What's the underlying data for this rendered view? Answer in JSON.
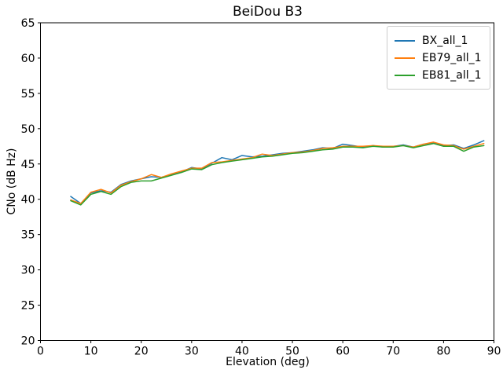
{
  "chart_data": {
    "type": "line",
    "title": "BeiDou B3",
    "xlabel": "Elevation (deg)",
    "ylabel": "CNo (dB Hz)",
    "xlim": [
      0,
      90
    ],
    "ylim": [
      20,
      65
    ],
    "xticks": [
      0,
      10,
      20,
      30,
      40,
      50,
      60,
      70,
      80,
      90
    ],
    "yticks": [
      20,
      25,
      30,
      35,
      40,
      45,
      50,
      55,
      60,
      65
    ],
    "grid": false,
    "legend_position": "upper right",
    "x": [
      6,
      8,
      10,
      12,
      14,
      16,
      18,
      20,
      22,
      24,
      26,
      28,
      30,
      32,
      34,
      36,
      38,
      40,
      42,
      44,
      46,
      48,
      50,
      52,
      54,
      56,
      58,
      60,
      62,
      64,
      66,
      68,
      70,
      72,
      74,
      76,
      78,
      80,
      82,
      84,
      86,
      88
    ],
    "series": [
      {
        "name": "BX_all_1",
        "color": "#1f77b4",
        "values": [
          40.4,
          39.4,
          40.9,
          41.2,
          41.0,
          42.1,
          42.6,
          42.9,
          43.2,
          43.1,
          43.5,
          43.9,
          44.5,
          44.3,
          45.1,
          45.9,
          45.6,
          46.2,
          46.0,
          46.1,
          46.3,
          46.5,
          46.6,
          46.8,
          47.0,
          47.3,
          47.2,
          47.8,
          47.6,
          47.4,
          47.6,
          47.4,
          47.5,
          47.7,
          47.4,
          47.8,
          48.0,
          47.6,
          47.7,
          47.2,
          47.7,
          48.3
        ]
      },
      {
        "name": "EB79_all_1",
        "color": "#ff7f0e",
        "values": [
          39.9,
          39.4,
          41.0,
          41.4,
          40.9,
          42.0,
          42.5,
          42.9,
          43.5,
          43.1,
          43.6,
          44.0,
          44.4,
          44.4,
          45.2,
          45.3,
          45.5,
          45.7,
          45.9,
          46.4,
          46.2,
          46.4,
          46.6,
          46.7,
          46.9,
          47.2,
          47.3,
          47.5,
          47.5,
          47.5,
          47.6,
          47.5,
          47.5,
          47.6,
          47.4,
          47.8,
          48.1,
          47.7,
          47.6,
          47.1,
          47.5,
          47.9
        ]
      },
      {
        "name": "EB81_all_1",
        "color": "#2ca02c",
        "values": [
          39.8,
          39.2,
          40.7,
          41.1,
          40.7,
          41.8,
          42.4,
          42.6,
          42.6,
          43.0,
          43.4,
          43.8,
          44.3,
          44.2,
          44.9,
          45.2,
          45.4,
          45.6,
          45.8,
          46.0,
          46.1,
          46.3,
          46.5,
          46.6,
          46.8,
          47.0,
          47.1,
          47.4,
          47.4,
          47.3,
          47.5,
          47.4,
          47.4,
          47.6,
          47.3,
          47.6,
          47.9,
          47.5,
          47.5,
          46.8,
          47.4,
          47.6
        ]
      }
    ]
  }
}
